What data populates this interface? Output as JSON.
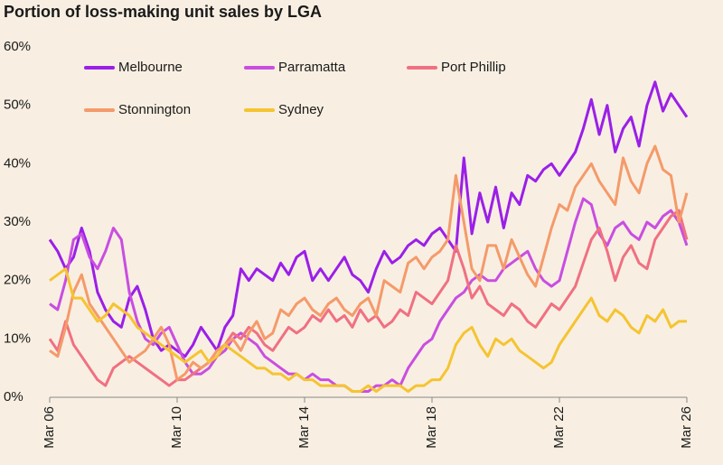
{
  "chart_data": {
    "type": "line",
    "title": "Portion of loss-making unit sales by LGA",
    "categories": [
      "Mar 06",
      null,
      null,
      null,
      null,
      null,
      null,
      null,
      null,
      null,
      null,
      null,
      null,
      null,
      null,
      null,
      "Mar 10",
      null,
      null,
      null,
      null,
      null,
      null,
      null,
      null,
      null,
      null,
      null,
      null,
      null,
      null,
      null,
      "Mar 14",
      null,
      null,
      null,
      null,
      null,
      null,
      null,
      null,
      null,
      null,
      null,
      null,
      null,
      null,
      null,
      "Mar 18",
      null,
      null,
      null,
      null,
      null,
      null,
      null,
      null,
      null,
      null,
      null,
      null,
      null,
      null,
      null,
      "Mar 22",
      null,
      null,
      null,
      null,
      null,
      null,
      null,
      null,
      null,
      null,
      null,
      null,
      null,
      null,
      null,
      "Mar 26"
    ],
    "series": [
      {
        "name": "Melbourne",
        "color": "#9b1fe8",
        "values": [
          27,
          25,
          22,
          24,
          29,
          25,
          18,
          15,
          13,
          12,
          17,
          19,
          15,
          10,
          8,
          9,
          8,
          7,
          9,
          12,
          10,
          8,
          12,
          14,
          22,
          20,
          22,
          21,
          20,
          23,
          21,
          24,
          25,
          20,
          22,
          20,
          22,
          24,
          21,
          20,
          18,
          22,
          25,
          23,
          24,
          26,
          27,
          26,
          28,
          29,
          27,
          25,
          41,
          28,
          35,
          30,
          36,
          29,
          35,
          33,
          38,
          37,
          39,
          40,
          38,
          40,
          42,
          46,
          51,
          45,
          50,
          42,
          46,
          48,
          43,
          50,
          54,
          49,
          52,
          50,
          48
        ]
      },
      {
        "name": "Parramatta",
        "color": "#c94ee0",
        "values": [
          16,
          15,
          20,
          27,
          28,
          24,
          22,
          25,
          29,
          27,
          18,
          13,
          10,
          9,
          11,
          12,
          9,
          6,
          4,
          4,
          5,
          7,
          8,
          10,
          11,
          10,
          9,
          7,
          6,
          5,
          4,
          4,
          3,
          4,
          3,
          3,
          2,
          2,
          1,
          1,
          1,
          2,
          2,
          3,
          2,
          5,
          7,
          9,
          10,
          13,
          15,
          17,
          18,
          20,
          21,
          20,
          20,
          22,
          23,
          24,
          25,
          22,
          20,
          19,
          20,
          25,
          30,
          34,
          33,
          28,
          26,
          29,
          30,
          28,
          27,
          30,
          29,
          31,
          32,
          30,
          26
        ]
      },
      {
        "name": "Port Phillip",
        "color": "#f07082",
        "values": [
          10,
          8,
          13,
          9,
          7,
          5,
          3,
          2,
          5,
          6,
          7,
          6,
          5,
          4,
          3,
          2,
          3,
          3,
          4,
          5,
          6,
          8,
          9,
          11,
          10,
          12,
          11,
          9,
          8,
          10,
          12,
          11,
          12,
          14,
          13,
          15,
          13,
          14,
          12,
          15,
          13,
          14,
          12,
          13,
          15,
          14,
          18,
          17,
          16,
          18,
          20,
          26,
          22,
          17,
          19,
          16,
          15,
          14,
          16,
          15,
          13,
          12,
          14,
          16,
          15,
          17,
          19,
          23,
          27,
          29,
          25,
          20,
          24,
          26,
          23,
          22,
          27,
          29,
          31,
          32,
          27
        ]
      },
      {
        "name": "Stonnington",
        "color": "#f59a6a",
        "values": [
          8,
          7,
          12,
          18,
          21,
          16,
          14,
          12,
          10,
          8,
          6,
          7,
          8,
          10,
          12,
          9,
          3,
          4,
          6,
          5,
          6,
          8,
          9,
          10,
          8,
          11,
          13,
          10,
          11,
          15,
          14,
          16,
          17,
          15,
          14,
          16,
          17,
          15,
          14,
          16,
          17,
          14,
          20,
          19,
          18,
          23,
          24,
          22,
          24,
          25,
          27,
          38,
          30,
          22,
          20,
          26,
          26,
          22,
          27,
          24,
          21,
          19,
          24,
          29,
          33,
          32,
          36,
          38,
          40,
          37,
          35,
          33,
          41,
          37,
          35,
          40,
          43,
          39,
          38,
          30,
          35
        ]
      },
      {
        "name": "Sydney",
        "color": "#f5c431",
        "values": [
          20,
          21,
          22,
          17,
          17,
          15,
          13,
          14,
          16,
          15,
          14,
          12,
          11,
          10,
          9,
          8,
          7,
          6,
          7,
          8,
          6,
          7,
          9,
          8,
          7,
          6,
          5,
          5,
          4,
          4,
          3,
          4,
          3,
          3,
          2,
          2,
          2,
          2,
          1,
          1,
          2,
          1,
          2,
          2,
          2,
          1,
          2,
          2,
          3,
          3,
          5,
          9,
          11,
          12,
          9,
          7,
          10,
          9,
          10,
          8,
          7,
          6,
          5,
          6,
          9,
          11,
          13,
          15,
          17,
          14,
          13,
          15,
          14,
          12,
          11,
          14,
          13,
          15,
          12,
          13,
          13
        ]
      }
    ],
    "ylim": [
      0,
      60
    ],
    "yticks": [
      {
        "value": 0,
        "label": "0%"
      },
      {
        "value": 10,
        "label": "10%"
      },
      {
        "value": 20,
        "label": "20%"
      },
      {
        "value": 30,
        "label": "30%"
      },
      {
        "value": 40,
        "label": "40%"
      },
      {
        "value": 50,
        "label": "50%"
      },
      {
        "value": 60,
        "label": "60%"
      }
    ]
  }
}
